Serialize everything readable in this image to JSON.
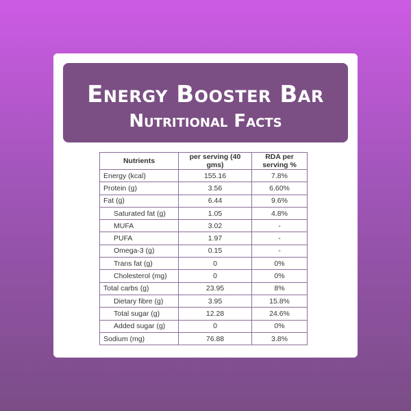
{
  "header": {
    "title": "Energy Booster Bar",
    "subtitle": "Nutritional Facts"
  },
  "table": {
    "columns": [
      "Nutrients",
      "per serving (40 gms)",
      "RDA per serving %"
    ],
    "rows": [
      [
        "Energy (kcal)",
        "155.16",
        "7.8%"
      ],
      [
        "Protein (g)",
        "3.56",
        "6.60%"
      ],
      [
        "Fat (g)",
        "6.44",
        "9.6%"
      ],
      [
        "Saturated fat (g)",
        "1.05",
        "4.8%"
      ],
      [
        "MUFA",
        "3.02",
        "-"
      ],
      [
        "PUFA",
        "1.97",
        "-"
      ],
      [
        "Omega-3 (g)",
        "0.15",
        "-"
      ],
      [
        "Trans fat (g)",
        "0",
        "0%"
      ],
      [
        "Cholesterol (mg)",
        "0",
        "0%"
      ],
      [
        "Total carbs (g)",
        "23.95",
        "8%"
      ],
      [
        "Dietary fibre (g)",
        "3.95",
        "15.8%"
      ],
      [
        "Total sugar (g)",
        "12.28",
        "24.6%"
      ],
      [
        "Added sugar (g)",
        "0",
        "0%"
      ],
      [
        "Sodium (mg)",
        "76.88",
        "3.8%"
      ]
    ]
  }
}
